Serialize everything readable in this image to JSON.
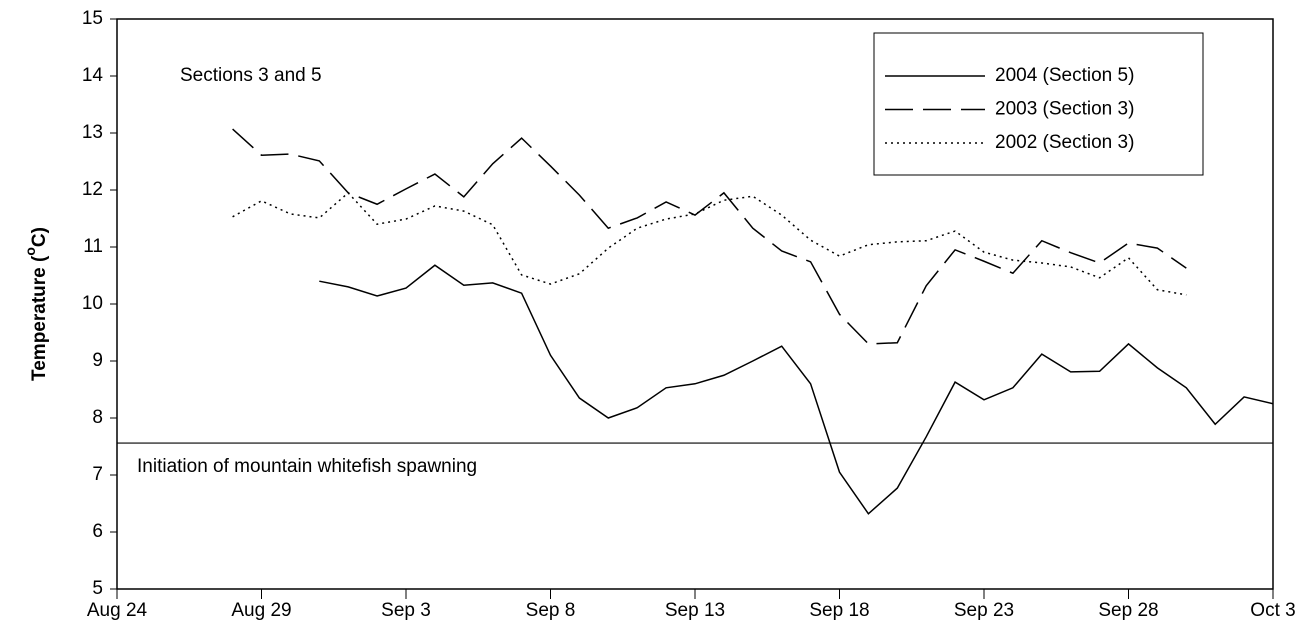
{
  "chart_data": {
    "type": "line",
    "y_label": "Temperature (",
    "y_label_sup": "o",
    "y_label_end": "C)",
    "annotations": [
      "Sections 3 and 5",
      "Initiation of mountain whitefish spawning"
    ],
    "reference_line": 7.56,
    "xlim": [
      0,
      40
    ],
    "xticks": [
      {
        "value": 0,
        "label": "Aug 24"
      },
      {
        "value": 5,
        "label": "Aug 29"
      },
      {
        "value": 10,
        "label": "Sep 3"
      },
      {
        "value": 15,
        "label": "Sep 8"
      },
      {
        "value": 20,
        "label": "Sep 13"
      },
      {
        "value": 25,
        "label": "Sep 18"
      },
      {
        "value": 30,
        "label": "Sep 23"
      },
      {
        "value": 35,
        "label": "Sep 28"
      },
      {
        "value": 40,
        "label": "Oct 3"
      }
    ],
    "ylim": [
      5,
      15
    ],
    "yticks": [
      5,
      6,
      7,
      8,
      9,
      10,
      11,
      12,
      13,
      14,
      15
    ],
    "legend": "upper right",
    "series": [
      {
        "name": "2004 (Section 5)",
        "color": "#000000",
        "dash": "solid",
        "x": [
          7,
          8,
          9,
          10,
          11,
          12,
          13,
          14,
          15,
          16,
          17,
          18,
          19,
          20,
          21,
          22,
          23,
          24,
          25,
          26,
          27,
          28,
          29,
          30,
          31,
          32,
          33,
          34,
          35,
          36,
          37,
          38,
          39,
          40
        ],
        "values": [
          10.4,
          10.3,
          10.14,
          10.28,
          10.68,
          10.33,
          10.37,
          10.19,
          9.1,
          8.35,
          8.0,
          8.18,
          8.53,
          8.6,
          8.75,
          9.0,
          9.26,
          8.6,
          7.05,
          6.32,
          6.77,
          7.67,
          8.63,
          8.32,
          8.53,
          9.12,
          8.81,
          8.82,
          9.3,
          8.88,
          8.53,
          7.89,
          8.37,
          8.25
        ]
      },
      {
        "name": "2003 (Section 3)",
        "color": "#000000",
        "dash": "dashed",
        "x": [
          4,
          5,
          6,
          7,
          8,
          9,
          10,
          11,
          12,
          13,
          14,
          15,
          16,
          17,
          18,
          19,
          20,
          21,
          22,
          23,
          24,
          25,
          26,
          27,
          28,
          29,
          30,
          31,
          32,
          33,
          34,
          35,
          36,
          37
        ],
        "values": [
          13.07,
          12.61,
          12.63,
          12.51,
          11.95,
          11.75,
          12.02,
          12.28,
          11.88,
          12.46,
          12.91,
          12.42,
          11.91,
          11.33,
          11.51,
          11.79,
          11.56,
          11.95,
          11.33,
          10.93,
          10.74,
          9.82,
          9.3,
          9.32,
          10.32,
          10.95,
          10.75,
          10.54,
          11.11,
          10.9,
          10.72,
          11.07,
          10.98,
          10.63
        ]
      },
      {
        "name": "2002 (Section 3)",
        "color": "#000000",
        "dash": "dotted",
        "x": [
          4,
          5,
          6,
          7,
          8,
          9,
          10,
          11,
          12,
          13,
          14,
          15,
          16,
          17,
          18,
          19,
          20,
          21,
          22,
          23,
          24,
          25,
          26,
          27,
          28,
          29,
          30,
          31,
          32,
          33,
          34,
          35,
          36,
          37
        ],
        "values": [
          11.53,
          11.81,
          11.58,
          11.51,
          11.95,
          11.4,
          11.49,
          11.72,
          11.63,
          11.39,
          10.51,
          10.35,
          10.53,
          10.98,
          11.33,
          11.49,
          11.58,
          11.82,
          11.89,
          11.56,
          11.12,
          10.84,
          11.04,
          11.09,
          11.11,
          11.28,
          10.91,
          10.77,
          10.72,
          10.65,
          10.46,
          10.81,
          10.25,
          10.16
        ]
      }
    ]
  }
}
